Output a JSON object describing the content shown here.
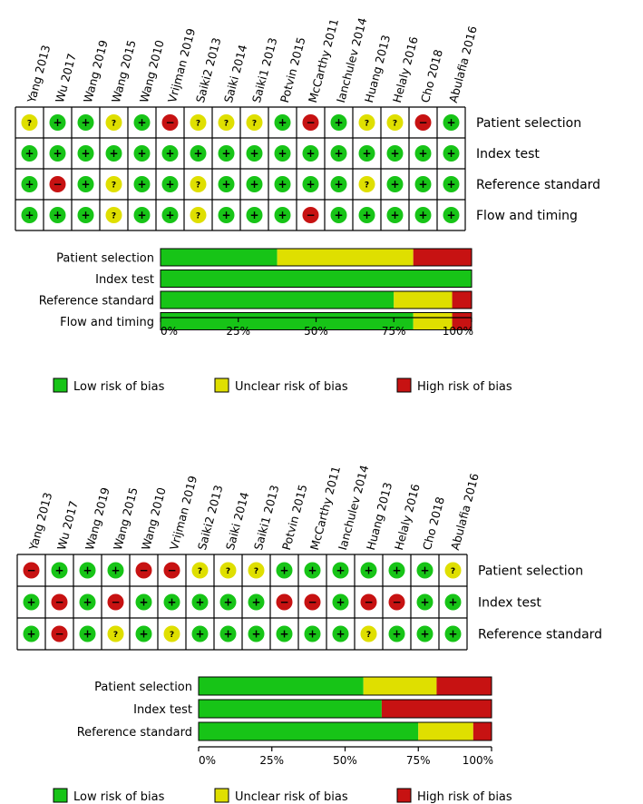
{
  "colors": {
    "low": "#17c417",
    "unclear": "#dfdf00",
    "high": "#c71212"
  },
  "symbols": {
    "low": "+",
    "unclear": "?",
    "high": "−"
  },
  "chart_data": [
    {
      "type": "table",
      "studies": [
        "Yang 2013",
        "Wu 2017",
        "Wang 2019",
        "Wang 2015",
        "Wang 2010",
        "Vrijman 2019",
        "Saiki2 2013",
        "Saiki 2014",
        "Saiki1 2013",
        "Potvin 2015",
        "McCarthy 2011",
        "Ianchulev 2014",
        "Huang 2013",
        "Helaly 2016",
        "Cho 2018",
        "Abulafia 2016"
      ],
      "domains": [
        "Patient selection",
        "Index test",
        "Reference standard",
        "Flow and timing"
      ],
      "judgements": [
        [
          "unclear",
          "low",
          "low",
          "unclear",
          "low",
          "high",
          "unclear",
          "unclear",
          "unclear",
          "low",
          "high",
          "low",
          "unclear",
          "unclear",
          "high",
          "low"
        ],
        [
          "low",
          "low",
          "low",
          "low",
          "low",
          "low",
          "low",
          "low",
          "low",
          "low",
          "low",
          "low",
          "low",
          "low",
          "low",
          "low"
        ],
        [
          "low",
          "high",
          "low",
          "unclear",
          "low",
          "low",
          "unclear",
          "low",
          "low",
          "low",
          "low",
          "low",
          "unclear",
          "low",
          "low",
          "low"
        ],
        [
          "low",
          "low",
          "low",
          "unclear",
          "low",
          "low",
          "unclear",
          "low",
          "low",
          "low",
          "high",
          "low",
          "low",
          "low",
          "low",
          "low"
        ]
      ]
    },
    {
      "type": "bar",
      "categories": [
        "Patient selection",
        "Index test",
        "Reference standard",
        "Flow and timing"
      ],
      "series": [
        {
          "name": "Low risk of bias",
          "key": "low",
          "values": [
            37.5,
            100,
            75,
            81.25
          ]
        },
        {
          "name": "Unclear risk of bias",
          "key": "unclear",
          "values": [
            43.75,
            0,
            18.75,
            12.5
          ]
        },
        {
          "name": "High risk of bias",
          "key": "high",
          "values": [
            18.75,
            0,
            6.25,
            6.25
          ]
        }
      ],
      "xticks": [
        "0%",
        "25%",
        "50%",
        "75%",
        "100%"
      ],
      "xlim": [
        0,
        100
      ],
      "legend": "bottom"
    },
    {
      "type": "table",
      "studies": [
        "Yang 2013",
        "Wu 2017",
        "Wang 2019",
        "Wang 2015",
        "Wang 2010",
        "Vrijman 2019",
        "Saiki2 2013",
        "Saiki 2014",
        "Saiki1 2013",
        "Potvin 2015",
        "McCarthy 2011",
        "Ianchulev 2014",
        "Huang 2013",
        "Helaly 2016",
        "Cho 2018",
        "Abulafia 2016"
      ],
      "domains": [
        "Patient selection",
        "Index test",
        "Reference standard"
      ],
      "judgements": [
        [
          "high",
          "low",
          "low",
          "low",
          "high",
          "high",
          "unclear",
          "unclear",
          "unclear",
          "low",
          "low",
          "low",
          "low",
          "low",
          "low",
          "unclear"
        ],
        [
          "low",
          "high",
          "low",
          "high",
          "low",
          "low",
          "low",
          "low",
          "low",
          "high",
          "high",
          "low",
          "high",
          "high",
          "low",
          "low"
        ],
        [
          "low",
          "high",
          "low",
          "unclear",
          "low",
          "unclear",
          "low",
          "low",
          "low",
          "low",
          "low",
          "low",
          "unclear",
          "low",
          "low",
          "low"
        ]
      ]
    },
    {
      "type": "bar",
      "categories": [
        "Patient selection",
        "Index test",
        "Reference standard"
      ],
      "series": [
        {
          "name": "Low risk of bias",
          "key": "low",
          "values": [
            56.25,
            62.5,
            75
          ]
        },
        {
          "name": "Unclear risk of bias",
          "key": "unclear",
          "values": [
            25,
            0,
            18.75
          ]
        },
        {
          "name": "High risk of bias",
          "key": "high",
          "values": [
            18.75,
            37.5,
            6.25
          ]
        }
      ],
      "xticks": [
        "0%",
        "25%",
        "50%",
        "75%",
        "100%"
      ],
      "xlim": [
        0,
        100
      ],
      "legend": "bottom"
    }
  ]
}
